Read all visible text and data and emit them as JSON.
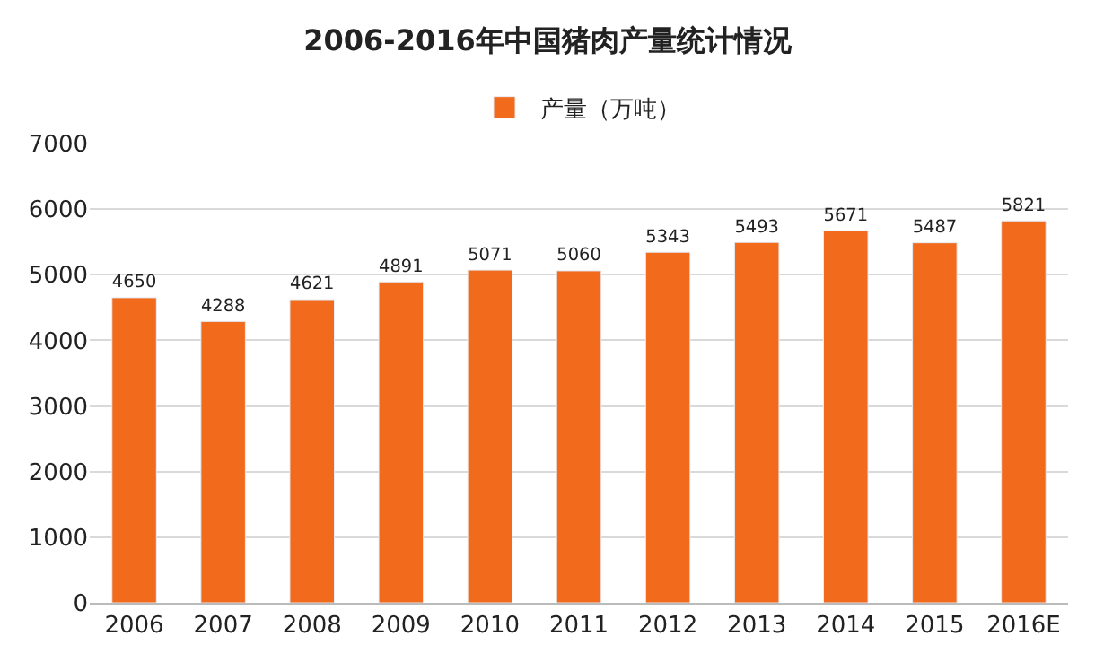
{
  "chart_data": {
    "type": "bar",
    "title": "2006-2016年中国猪肉产量统计情况",
    "categories": [
      "2006",
      "2007",
      "2008",
      "2009",
      "2010",
      "2011",
      "2012",
      "2013",
      "2014",
      "2015",
      "2016E"
    ],
    "series": [
      {
        "name": "产量（万吨）",
        "color": "#f26a1b",
        "values": [
          4650,
          4288,
          4621,
          4891,
          5071,
          5060,
          5343,
          5493,
          5671,
          5487,
          5821
        ]
      }
    ],
    "ylim": [
      0,
      7000
    ],
    "yticks": [
      0,
      1000,
      2000,
      3000,
      4000,
      5000,
      6000,
      7000
    ],
    "grid": "y",
    "legend": "top",
    "data_labels": true
  }
}
